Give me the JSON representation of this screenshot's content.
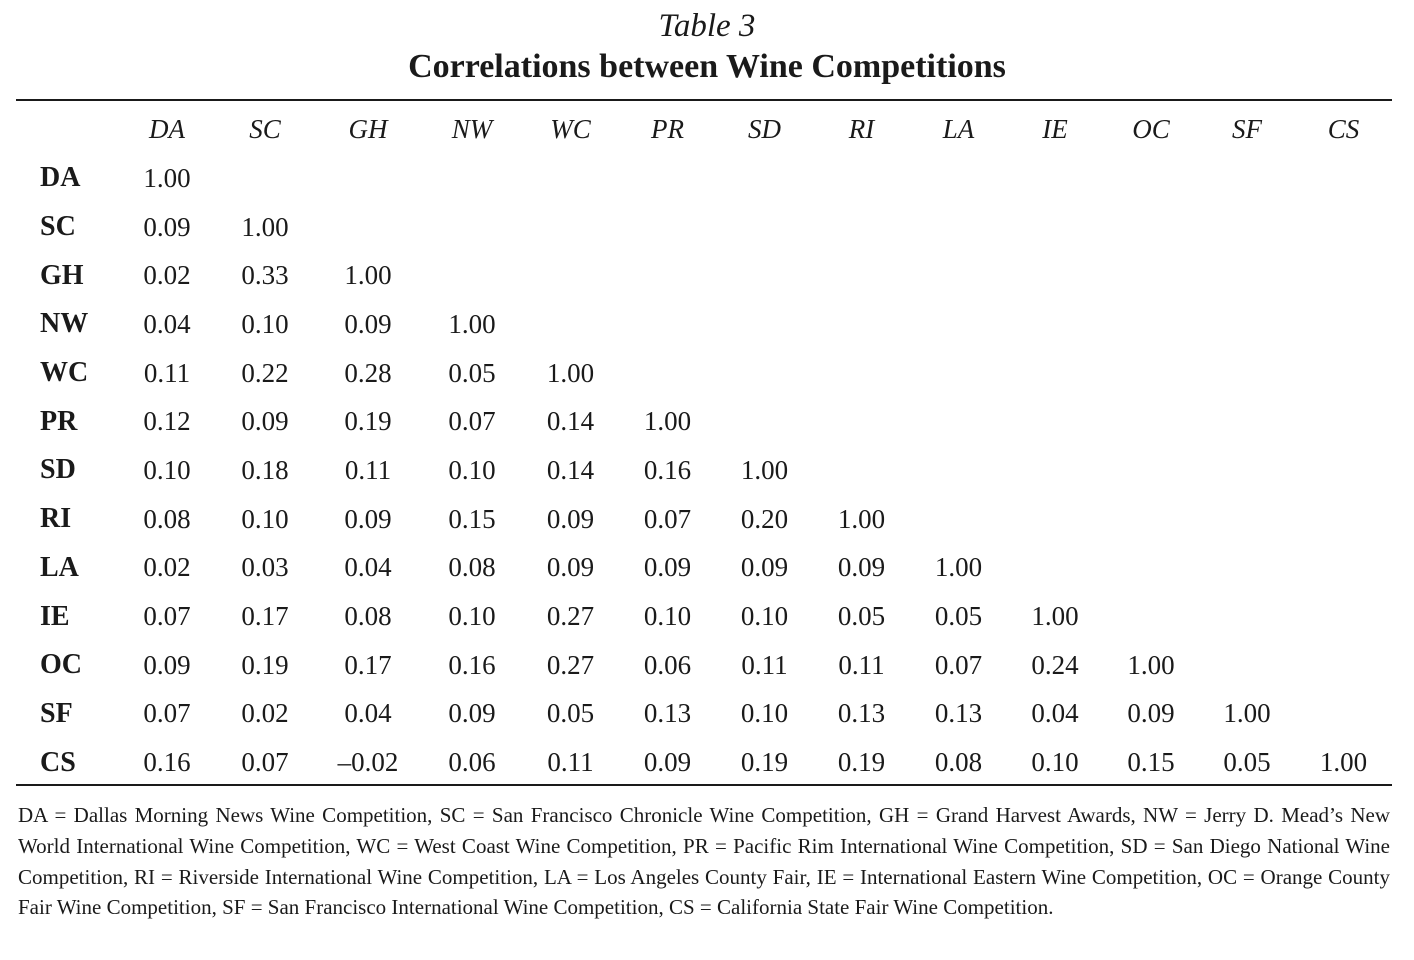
{
  "table_label": "Table 3",
  "table_title": "Correlations between Wine Competitions",
  "columns": [
    "DA",
    "SC",
    "GH",
    "NW",
    "WC",
    "PR",
    "SD",
    "RI",
    "LA",
    "IE",
    "OC",
    "SF",
    "CS"
  ],
  "rows": [
    {
      "label": "DA",
      "values": [
        "1.00",
        "",
        "",
        "",
        "",
        "",
        "",
        "",
        "",
        "",
        "",
        "",
        ""
      ]
    },
    {
      "label": "SC",
      "values": [
        "0.09",
        "1.00",
        "",
        "",
        "",
        "",
        "",
        "",
        "",
        "",
        "",
        "",
        ""
      ]
    },
    {
      "label": "GH",
      "values": [
        "0.02",
        "0.33",
        "1.00",
        "",
        "",
        "",
        "",
        "",
        "",
        "",
        "",
        "",
        ""
      ]
    },
    {
      "label": "NW",
      "values": [
        "0.04",
        "0.10",
        "0.09",
        "1.00",
        "",
        "",
        "",
        "",
        "",
        "",
        "",
        "",
        ""
      ]
    },
    {
      "label": "WC",
      "values": [
        "0.11",
        "0.22",
        "0.28",
        "0.05",
        "1.00",
        "",
        "",
        "",
        "",
        "",
        "",
        "",
        ""
      ]
    },
    {
      "label": "PR",
      "values": [
        "0.12",
        "0.09",
        "0.19",
        "0.07",
        "0.14",
        "1.00",
        "",
        "",
        "",
        "",
        "",
        "",
        ""
      ]
    },
    {
      "label": "SD",
      "values": [
        "0.10",
        "0.18",
        "0.11",
        "0.10",
        "0.14",
        "0.16",
        "1.00",
        "",
        "",
        "",
        "",
        "",
        ""
      ]
    },
    {
      "label": "RI",
      "values": [
        "0.08",
        "0.10",
        "0.09",
        "0.15",
        "0.09",
        "0.07",
        "0.20",
        "1.00",
        "",
        "",
        "",
        "",
        ""
      ]
    },
    {
      "label": "LA",
      "values": [
        "0.02",
        "0.03",
        "0.04",
        "0.08",
        "0.09",
        "0.09",
        "0.09",
        "0.09",
        "1.00",
        "",
        "",
        "",
        ""
      ]
    },
    {
      "label": "IE",
      "values": [
        "0.07",
        "0.17",
        "0.08",
        "0.10",
        "0.27",
        "0.10",
        "0.10",
        "0.05",
        "0.05",
        "1.00",
        "",
        "",
        ""
      ]
    },
    {
      "label": "OC",
      "values": [
        "0.09",
        "0.19",
        "0.17",
        "0.16",
        "0.27",
        "0.06",
        "0.11",
        "0.11",
        "0.07",
        "0.24",
        "1.00",
        "",
        ""
      ]
    },
    {
      "label": "SF",
      "values": [
        "0.07",
        "0.02",
        "0.04",
        "0.09",
        "0.05",
        "0.13",
        "0.10",
        "0.13",
        "0.13",
        "0.04",
        "0.09",
        "1.00",
        ""
      ]
    },
    {
      "label": "CS",
      "values": [
        "0.16",
        "0.07",
        "–0.02",
        "0.06",
        "0.11",
        "0.09",
        "0.19",
        "0.19",
        "0.08",
        "0.10",
        "0.15",
        "0.05",
        "1.00"
      ]
    }
  ],
  "footnote": "DA = Dallas Morning News Wine Competition, SC = San Francisco Chronicle Wine Competition, GH = Grand Harvest Awards, NW = Jerry D. Mead’s New World International Wine Competition, WC = West Coast Wine Competition, PR = Pacific Rim International Wine Competition, SD = San Diego National Wine Competition, RI = Riverside International Wine Competition, LA = Los Angeles County Fair, IE = International Eastern Wine Competition, OC = Orange County Fair Wine Competition, SF = San Francisco International Wine Competition, CS = California State Fair Wine Competition."
}
